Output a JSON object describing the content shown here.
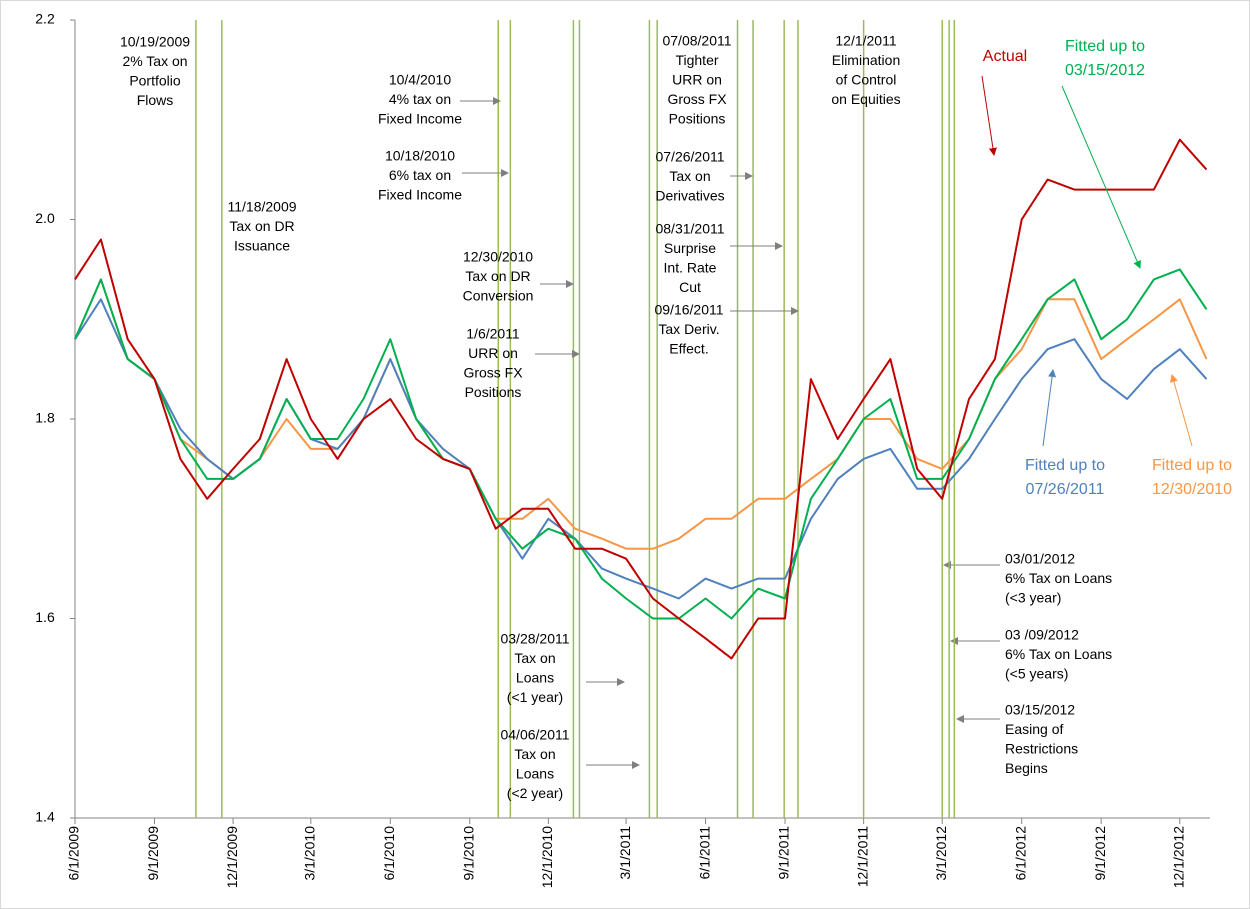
{
  "chart_data": {
    "type": "line",
    "x": [
      "6/1/2009",
      "7/1/2009",
      "8/1/2009",
      "9/1/2009",
      "10/1/2009",
      "11/1/2009",
      "12/1/2009",
      "1/1/2010",
      "2/1/2010",
      "3/1/2010",
      "4/1/2010",
      "5/1/2010",
      "6/1/2010",
      "7/1/2010",
      "8/1/2010",
      "9/1/2010",
      "10/1/2010",
      "11/1/2010",
      "12/1/2010",
      "1/1/2011",
      "2/1/2011",
      "3/1/2011",
      "4/1/2011",
      "5/1/2011",
      "6/1/2011",
      "7/1/2011",
      "8/1/2011",
      "9/1/2011",
      "10/1/2011",
      "11/1/2011",
      "12/1/2011",
      "1/1/2012",
      "2/1/2012",
      "3/1/2012",
      "4/1/2012",
      "5/1/2012",
      "6/1/2012",
      "7/1/2012",
      "8/1/2012",
      "9/1/2012",
      "10/1/2012",
      "11/1/2012",
      "12/1/2012",
      "1/1/2013"
    ],
    "series": [
      {
        "name": "Actual",
        "color": "#c00000",
        "values": [
          1.94,
          1.98,
          1.88,
          1.84,
          1.76,
          1.72,
          1.75,
          1.78,
          1.86,
          1.8,
          1.76,
          1.8,
          1.82,
          1.78,
          1.76,
          1.75,
          1.69,
          1.71,
          1.71,
          1.67,
          1.67,
          1.66,
          1.62,
          1.6,
          1.58,
          1.56,
          1.6,
          1.6,
          1.84,
          1.78,
          1.82,
          1.86,
          1.75,
          1.72,
          1.82,
          1.86,
          2.0,
          2.04,
          2.03,
          2.03,
          2.03,
          2.03,
          2.08,
          2.05
        ]
      },
      {
        "name": "Fitted up to 03/15/2012",
        "color": "#00b050",
        "values": [
          1.88,
          1.94,
          1.86,
          1.84,
          1.78,
          1.74,
          1.74,
          1.76,
          1.82,
          1.78,
          1.78,
          1.82,
          1.88,
          1.8,
          1.76,
          1.75,
          1.7,
          1.67,
          1.69,
          1.68,
          1.64,
          1.62,
          1.6,
          1.6,
          1.62,
          1.6,
          1.63,
          1.62,
          1.72,
          1.76,
          1.8,
          1.82,
          1.74,
          1.74,
          1.78,
          1.84,
          1.88,
          1.92,
          1.94,
          1.88,
          1.9,
          1.94,
          1.95,
          1.91
        ]
      },
      {
        "name": "Fitted up to 07/26/2011",
        "color": "#4f81bd",
        "values": [
          1.88,
          1.92,
          1.86,
          1.84,
          1.79,
          1.76,
          1.74,
          1.76,
          1.82,
          1.78,
          1.77,
          1.8,
          1.86,
          1.8,
          1.77,
          1.75,
          1.7,
          1.66,
          1.7,
          1.68,
          1.65,
          1.64,
          1.63,
          1.62,
          1.64,
          1.63,
          1.64,
          1.64,
          1.7,
          1.74,
          1.76,
          1.77,
          1.73,
          1.73,
          1.76,
          1.8,
          1.84,
          1.87,
          1.88,
          1.84,
          1.82,
          1.85,
          1.87,
          1.84
        ]
      },
      {
        "name": "Fitted up to 12/30/2010",
        "color": "#f79646",
        "values": [
          1.88,
          1.94,
          1.86,
          1.84,
          1.78,
          1.76,
          1.74,
          1.76,
          1.8,
          1.77,
          1.77,
          1.8,
          1.86,
          1.8,
          1.76,
          1.75,
          1.7,
          1.7,
          1.72,
          1.69,
          1.68,
          1.67,
          1.67,
          1.68,
          1.7,
          1.7,
          1.72,
          1.72,
          1.74,
          1.76,
          1.8,
          1.8,
          1.76,
          1.75,
          1.78,
          1.84,
          1.87,
          1.92,
          1.92,
          1.86,
          1.88,
          1.9,
          1.92,
          1.86
        ]
      }
    ],
    "xlim": [
      "6/1/2009",
      "1/5/2013"
    ],
    "xticks": [
      "6/1/2009",
      "9/1/2009",
      "12/1/2009",
      "3/1/2010",
      "6/1/2010",
      "9/1/2010",
      "12/1/2010",
      "3/1/2011",
      "6/1/2011",
      "9/1/2011",
      "12/1/2011",
      "3/1/2012",
      "6/1/2012",
      "9/1/2012",
      "12/1/2012"
    ],
    "ylim": [
      1.4,
      2.2
    ],
    "yticks": [
      1.4,
      1.6,
      1.8,
      {
        "value": 2,
        "label": "2.0"
      },
      2.2
    ],
    "event_line_color": "#9bbb59",
    "events": [
      {
        "date": "10/19/2009",
        "lines": [
          "10/19/2009",
          "2% Tax on",
          "Portfolio",
          "Flows"
        ]
      },
      {
        "date": "11/18/2009",
        "lines": [
          "11/18/2009",
          "Tax on DR",
          "Issuance"
        ]
      },
      {
        "date": "10/4/2010",
        "lines": [
          "10/4/2010",
          "4% tax on",
          "Fixed Income"
        ]
      },
      {
        "date": "10/18/2010",
        "lines": [
          "10/18/2010",
          "6% tax on",
          "Fixed Income"
        ]
      },
      {
        "date": "12/30/2010",
        "lines": [
          "12/30/2010",
          "Tax on DR",
          "Conversion"
        ]
      },
      {
        "date": "1/6/2011",
        "lines": [
          "1/6/2011",
          "URR on",
          "Gross FX",
          "Positions"
        ]
      },
      {
        "date": "3/28/2011",
        "lines": [
          "03/28/2011",
          "Tax on",
          "Loans",
          "(<1 year)"
        ]
      },
      {
        "date": "4/6/2011",
        "lines": [
          "04/06/2011",
          "Tax on",
          "Loans",
          "(<2 year)"
        ]
      },
      {
        "date": "7/8/2011",
        "lines": [
          "07/08/2011",
          "Tighter",
          "URR on",
          "Gross FX",
          "Positions"
        ]
      },
      {
        "date": "7/26/2011",
        "lines": [
          "07/26/2011",
          "Tax on",
          "Derivatives"
        ]
      },
      {
        "date": "8/31/2011",
        "lines": [
          "08/31/2011",
          "Surprise",
          "Int. Rate",
          "Cut"
        ]
      },
      {
        "date": "9/16/2011",
        "lines": [
          "09/16/2011",
          "Tax Deriv.",
          "Effect."
        ]
      },
      {
        "date": "12/1/2011",
        "lines": [
          "12/1/2011",
          "Elimination",
          "of Control",
          "on Equities"
        ]
      },
      {
        "date": "3/1/2012",
        "lines": [
          "03/01/2012",
          "6% Tax on Loans",
          "(<3 year)"
        ]
      },
      {
        "date": "3/9/2012",
        "lines": [
          "03 /09/2012",
          "6% Tax on Loans",
          "(<5 years)"
        ]
      },
      {
        "date": "3/15/2012",
        "lines": [
          "03/15/2012",
          "Easing of",
          "Restrictions",
          "Begins"
        ]
      }
    ]
  }
}
